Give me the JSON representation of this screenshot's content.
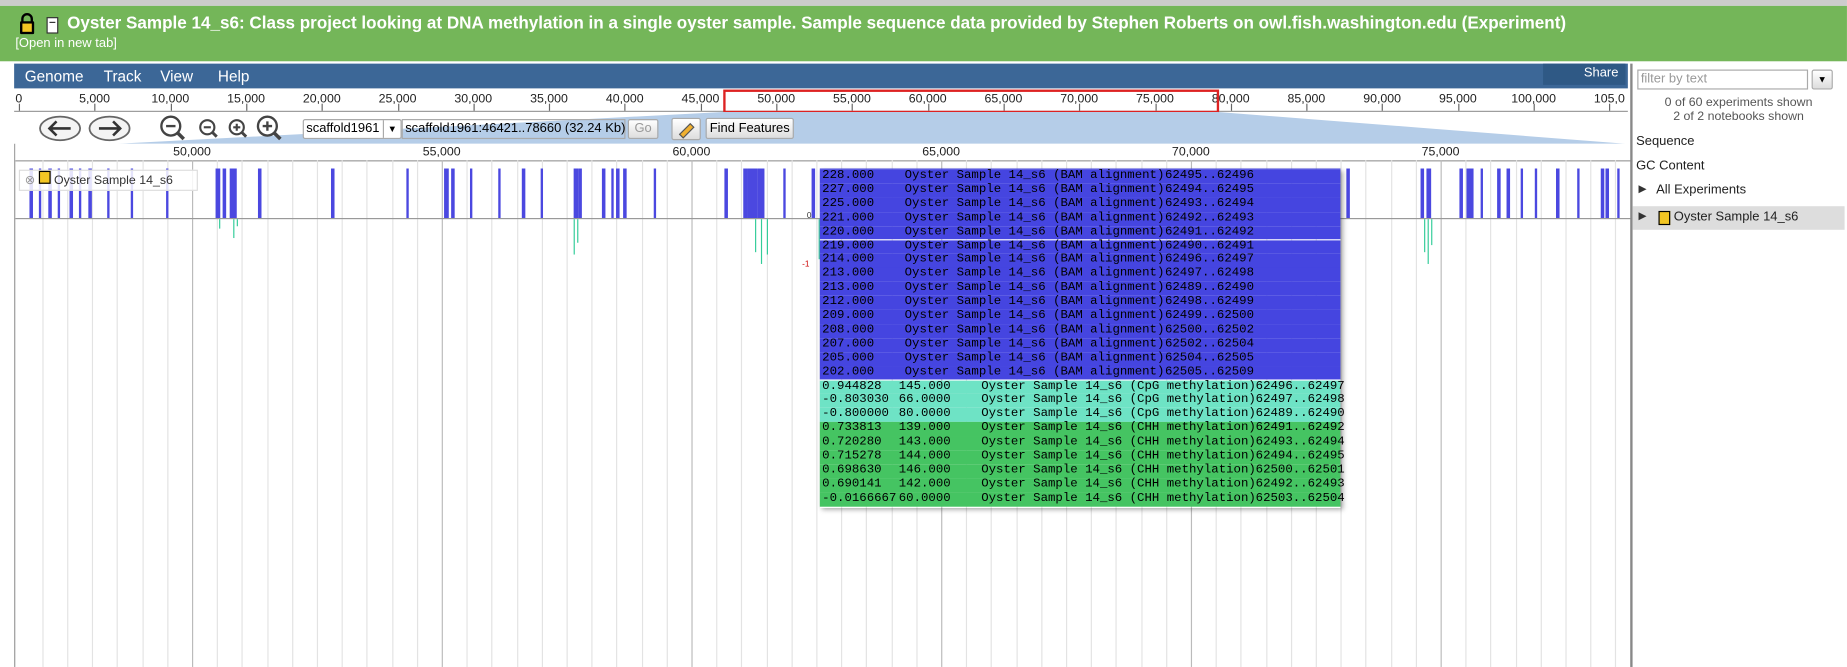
{
  "header": {
    "title": "Oyster Sample 14_s6: Class project looking at DNA methylation in a single oyster sample. Sample sequence data provided by Stephen Roberts on owl.fish.washington.edu (Experiment)",
    "link": "[Open in new tab]"
  },
  "menu": {
    "items": [
      "Genome",
      "Track",
      "View",
      "Help"
    ],
    "share": "Share"
  },
  "overview_ruler": [
    "0",
    "5,000",
    "10,000",
    "15,000",
    "20,000",
    "25,000",
    "30,000",
    "35,000",
    "40,000",
    "45,000",
    "50,000",
    "55,000",
    "60,000",
    "65,000",
    "70,000",
    "75,000",
    "80,000",
    "85,000",
    "90,000",
    "95,000",
    "100,000",
    "105,0"
  ],
  "navigation": {
    "reference": "scaffold1961",
    "location": "scaffold1961:46421..78660 (32.24 Kb)",
    "go": "Go",
    "find": "Find Features"
  },
  "detail_ruler": [
    "50,000",
    "55,000",
    "60,000",
    "65,000",
    "70,000",
    "75,000"
  ],
  "track": {
    "label": "Oyster Sample 14_s6",
    "axis": [
      "0",
      "-1"
    ]
  },
  "popup": {
    "alignments": [
      [
        "228.000",
        "Oyster Sample 14_s6 (BAM alignment)",
        "62495..62496"
      ],
      [
        "227.000",
        "Oyster Sample 14_s6 (BAM alignment)",
        "62494..62495"
      ],
      [
        "225.000",
        "Oyster Sample 14_s6 (BAM alignment)",
        "62493..62494"
      ],
      [
        "221.000",
        "Oyster Sample 14_s6 (BAM alignment)",
        "62492..62493"
      ],
      [
        "220.000",
        "Oyster Sample 14_s6 (BAM alignment)",
        "62491..62492"
      ],
      [
        "219.000",
        "Oyster Sample 14_s6 (BAM alignment)",
        "62490..62491"
      ],
      [
        "214.000",
        "Oyster Sample 14_s6 (BAM alignment)",
        "62496..62497"
      ],
      [
        "213.000",
        "Oyster Sample 14_s6 (BAM alignment)",
        "62497..62498"
      ],
      [
        "213.000",
        "Oyster Sample 14_s6 (BAM alignment)",
        "62489..62490"
      ],
      [
        "212.000",
        "Oyster Sample 14_s6 (BAM alignment)",
        "62498..62499"
      ],
      [
        "209.000",
        "Oyster Sample 14_s6 (BAM alignment)",
        "62499..62500"
      ],
      [
        "208.000",
        "Oyster Sample 14_s6 (BAM alignment)",
        "62500..62502"
      ],
      [
        "207.000",
        "Oyster Sample 14_s6 (BAM alignment)",
        "62502..62504"
      ],
      [
        "205.000",
        "Oyster Sample 14_s6 (BAM alignment)",
        "62504..62505"
      ],
      [
        "202.000",
        "Oyster Sample 14_s6 (BAM alignment)",
        "62505..62509"
      ]
    ],
    "cpg": [
      [
        "0.944828",
        "145.000",
        "Oyster Sample 14_s6 (CpG methylation)",
        "62496..62497"
      ],
      [
        "-0.803030",
        "66.0000",
        "Oyster Sample 14_s6 (CpG methylation)",
        "62497..62498"
      ],
      [
        "-0.800000",
        "80.0000",
        "Oyster Sample 14_s6 (CpG methylation)",
        "62489..62490"
      ]
    ],
    "chh": [
      [
        "0.733813",
        "139.000",
        "Oyster Sample 14_s6 (CHH methylation)",
        "62491..62492"
      ],
      [
        "0.720280",
        "143.000",
        "Oyster Sample 14_s6 (CHH methylation)",
        "62493..62494"
      ],
      [
        "0.715278",
        "144.000",
        "Oyster Sample 14_s6 (CHH methylation)",
        "62494..62495"
      ],
      [
        "0.698630",
        "146.000",
        "Oyster Sample 14_s6 (CHH methylation)",
        "62500..62501"
      ],
      [
        "0.690141",
        "142.000",
        "Oyster Sample 14_s6 (CHH methylation)",
        "62492..62493"
      ],
      [
        "-0.0166667",
        "60.0000",
        "Oyster Sample 14_s6 (CHH methylation)",
        "62503..62504"
      ]
    ]
  },
  "sidebar": {
    "filter_placeholder": "filter by text",
    "experiments": "0 of 60 experiments shown",
    "notebooks": "2 of 2 notebooks shown",
    "tracks": [
      "Sequence",
      "GC Content"
    ],
    "tree": [
      "All Experiments",
      "Oyster Sample 14_s6"
    ]
  }
}
